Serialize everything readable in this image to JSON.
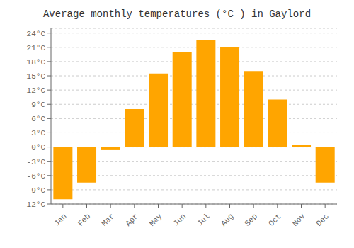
{
  "chart_data": {
    "type": "bar",
    "title": "Average monthly temperatures (°C ) in Gaylord",
    "categories": [
      "Jan",
      "Feb",
      "Mar",
      "Apr",
      "May",
      "Jun",
      "Jul",
      "Aug",
      "Sep",
      "Oct",
      "Nov",
      "Dec"
    ],
    "values": [
      -11,
      -7.5,
      -0.5,
      8,
      15.5,
      20,
      22.5,
      21,
      16,
      10,
      0.5,
      -7.5
    ],
    "color": "#FFA500",
    "ylim": [
      -12,
      25
    ],
    "yticks": [
      {
        "value": -12,
        "label": "-12°C"
      },
      {
        "value": -9,
        "label": "-9°C"
      },
      {
        "value": -6,
        "label": "-6°C"
      },
      {
        "value": -3,
        "label": "-3°C"
      },
      {
        "value": 0,
        "label": "0°C"
      },
      {
        "value": 3,
        "label": "3°C"
      },
      {
        "value": 6,
        "label": "6°C"
      },
      {
        "value": 9,
        "label": "9°C"
      },
      {
        "value": 12,
        "label": "12°C"
      },
      {
        "value": 15,
        "label": "15°C"
      },
      {
        "value": 18,
        "label": "18°C"
      },
      {
        "value": 21,
        "label": "21°C"
      },
      {
        "value": 24,
        "label": "24°C"
      }
    ],
    "grid": true
  }
}
